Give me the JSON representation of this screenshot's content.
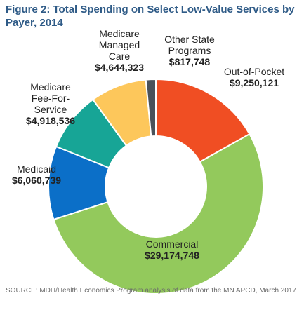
{
  "chart_data": {
    "type": "donut",
    "title": "Figure 2: Total Spending on Select Low-Value Services by Payer, 2014",
    "source": "SOURCE: MDH/Health Economics Program analysis of data from the MN APCD, March 2017",
    "categories": [
      "Out-of-Pocket",
      "Commercial",
      "Medicaid",
      "Medicare Fee-For-Service",
      "Medicare Managed Care",
      "Other State Programs"
    ],
    "values": [
      9250121,
      29174748,
      6060739,
      4918536,
      4644323,
      817748
    ],
    "value_labels": [
      "$9,250,121",
      "$29,174,748",
      "$6,060,739",
      "$4,918,536",
      "$4,644,323",
      "$817,748"
    ],
    "colors": [
      "#f04e23",
      "#93c95c",
      "#0b6fc8",
      "#17a596",
      "#fdc75b",
      "#4a525a"
    ]
  }
}
